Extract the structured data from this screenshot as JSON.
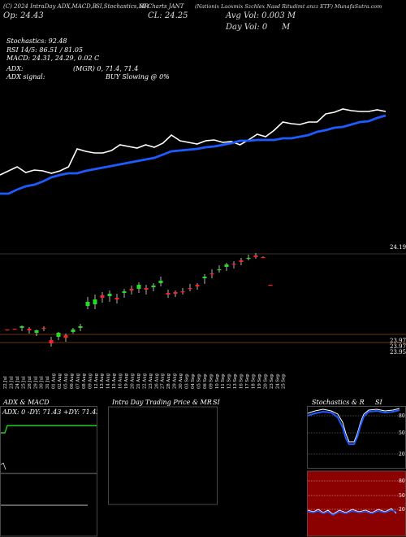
{
  "header": {
    "line1": [
      {
        "text": "(C) 2024 IntraDay ADX,MACD,B",
        "x": 4
      },
      {
        "text": "SI,Stochastics,MR",
        "x": 118
      },
      {
        "text": "SI Charts JANT",
        "x": 172
      },
      {
        "text": "(Nationix Laoxmix Szchlex Nasd Ritudimt anzz ETF) MunafaSutra.com",
        "x": 240
      }
    ],
    "line2": [
      {
        "text": "Op: 24.43",
        "x": 4
      },
      {
        "text": "CL: 24.25",
        "x": 182
      },
      {
        "text": "Avg Vol: 0.003 M",
        "x": 278
      }
    ],
    "line3": [
      {
        "text": "Day Vol: 0",
        "x": 278
      },
      {
        "text": "M",
        "x": 347
      }
    ]
  },
  "stats": {
    "stochastics": "Stochastics: 92.48",
    "rsi": "RSI 14/5: 86.51 / 81.05",
    "macd": "MACD: 24.31, 24.29, 0.02 C",
    "adx": "ADX:",
    "adx_mid": "(MGR) 0, 71.4, 71.4",
    "adx_signal": "ADX signal:",
    "buy_signal": "BUY Slowing @ 0%"
  },
  "price_labels": {
    "top": "24.19",
    "low1": "23.97",
    "low2": "23.97",
    "low3": "23.95"
  },
  "chart_data": [
    {
      "type": "line",
      "name": "price-and-moving-average",
      "series": [
        {
          "name": "",
          "color": "#ffffff",
          "values": [
            215,
            210,
            205,
            212,
            209,
            210,
            213,
            210,
            205,
            183,
            186,
            188,
            188,
            185,
            178,
            180,
            182,
            178,
            181,
            176,
            166,
            173,
            175,
            177,
            173,
            172,
            175,
            174,
            178,
            172,
            165,
            168,
            160,
            150,
            152,
            153,
            150,
            150,
            140,
            138,
            134,
            136,
            137,
            137,
            135,
            137
          ]
        },
        {
          "name": "",
          "color": "#1e5bff",
          "values": [
            238,
            238,
            233,
            229,
            227,
            223,
            218,
            215,
            213,
            213,
            210,
            208,
            206,
            204,
            202,
            200,
            198,
            196,
            194,
            190,
            186,
            185,
            184,
            183,
            181,
            180,
            178,
            176,
            173,
            173,
            172,
            172,
            172,
            170,
            170,
            168,
            166,
            162,
            160,
            157,
            156,
            153,
            150,
            149,
            145,
            142
          ]
        }
      ]
    },
    {
      "type": "candlestick",
      "name": "daily-candles",
      "ohlc_relative": [
        [
          405,
          405,
          405,
          405,
          0
        ],
        [
          404,
          404,
          404,
          404,
          0
        ],
        [
          403,
          407,
          400,
          401,
          1
        ],
        [
          406,
          410,
          402,
          404,
          0
        ],
        [
          409,
          413,
          405,
          406,
          1
        ],
        [
          404,
          407,
          401,
          403,
          0
        ],
        [
          418,
          426,
          414,
          422,
          0
        ],
        [
          414,
          418,
          408,
          409,
          1
        ],
        [
          415,
          420,
          410,
          412,
          0
        ],
        [
          405,
          410,
          403,
          408,
          1
        ],
        [
          403,
          407,
          398,
          401,
          1
        ],
        [
          371,
          380,
          365,
          376,
          1
        ],
        [
          368,
          380,
          362,
          374,
          1
        ],
        [
          366,
          372,
          359,
          363,
          0
        ],
        [
          364,
          371,
          357,
          361,
          1
        ],
        [
          368,
          373,
          361,
          366,
          0
        ],
        [
          360,
          366,
          355,
          358,
          1
        ],
        [
          357,
          362,
          351,
          355,
          0
        ],
        [
          355,
          360,
          347,
          350,
          1
        ],
        [
          356,
          362,
          350,
          354,
          0
        ],
        [
          353,
          358,
          348,
          351,
          1
        ],
        [
          345,
          352,
          340,
          348,
          1
        ],
        [
          362,
          366,
          356,
          360,
          0
        ],
        [
          361,
          365,
          357,
          359,
          0
        ],
        [
          359,
          362,
          354,
          358,
          0
        ],
        [
          354,
          358,
          349,
          355,
          0
        ],
        [
          352,
          356,
          348,
          350,
          0
        ],
        [
          342,
          349,
          337,
          340,
          1
        ],
        [
          337,
          342,
          331,
          336,
          0
        ],
        [
          331,
          335,
          326,
          331,
          1
        ],
        [
          328,
          333,
          323,
          325,
          1
        ],
        [
          325,
          330,
          321,
          324,
          0
        ],
        [
          322,
          326,
          317,
          320,
          0
        ],
        [
          318,
          320,
          313,
          317,
          1
        ],
        [
          314,
          318,
          311,
          316,
          0
        ],
        [
          316,
          317,
          315,
          316,
          0
        ],
        [
          350,
          350,
          350,
          350,
          0
        ]
      ]
    },
    {
      "type": "line",
      "name": "adx-macd-panel",
      "xlabel": "ADX & MACD",
      "values_text": "ADX: 0 -DY: 71.43 +DY: 71.43"
    },
    {
      "type": "line",
      "name": "stochastics-rsi-panel",
      "title": "Stochastics & R SI",
      "levels": [
        "80",
        "50",
        "20"
      ]
    }
  ],
  "dates": [
    "22 Jul",
    "23 Jul",
    "24 Jul",
    "25 Jul",
    "26 Jul",
    "29 Jul",
    "30 Jul",
    "31 Jul",
    "01 Aug",
    "02 Aug",
    "05 Aug",
    "06 Aug",
    "07 Aug",
    "08 Aug",
    "09 Aug",
    "12 Aug",
    "13 Aug",
    "14 Aug",
    "15 Aug",
    "16 Aug",
    "19 Aug",
    "20 Aug",
    "21 Aug",
    "22 Aug",
    "23 Aug",
    "26 Aug",
    "27 Aug",
    "28 Aug",
    "29 Aug",
    "30 Aug",
    "03 Sep",
    "04 Sep",
    "05 Sep",
    "06 Sep",
    "09 Sep",
    "10 Sep",
    "11 Sep",
    "12 Sep",
    "13 Sep",
    "16 Sep",
    "17 Sep",
    "18 Sep",
    "19 Sep",
    "20 Sep",
    "23 Sep",
    "24 Sep",
    "25 Sep"
  ],
  "panels": {
    "adx_title": "ADX & MACD",
    "adx_values": "ADX: 0 -DY: 71.43 +DY: 71.43",
    "intraday_title": "Intra Day Trading Price & MR",
    "intraday_title2": "SI",
    "stoch_title": "Stochastics & R",
    "stoch_title2": "SI",
    "stoch_levels": [
      "80",
      "50",
      "20"
    ],
    "rsi_levels": [
      "80",
      "50",
      "20"
    ]
  }
}
